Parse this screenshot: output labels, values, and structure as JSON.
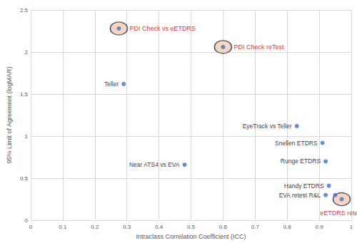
{
  "chart_data": {
    "type": "scatter",
    "xlabel": "Intraclass Correlation Coefficient (ICC)",
    "ylabel": "95% Limit of Agreement (logMAR)",
    "xlim": [
      0,
      1
    ],
    "xticks": [
      0,
      0.1,
      0.2,
      0.3,
      0.4,
      0.5,
      0.6,
      0.7,
      0.8,
      0.9,
      1
    ],
    "ylim": [
      0,
      2.5
    ],
    "yticks": [
      0,
      0.5,
      1,
      1.5,
      2,
      2.5
    ],
    "grid": true,
    "series": [
      {
        "color": "#4472c4",
        "marker": "circle",
        "x": [
          0.29,
          0.48,
          0.83,
          0.91,
          0.92,
          0.93,
          0.92,
          0.95
        ],
        "values": [
          1.62,
          0.66,
          1.12,
          0.92,
          0.7,
          0.41,
          0.3,
          0.3
        ],
        "labels": [
          "Teller",
          "Near ATS4 vs EVA",
          "EyeTrack vs Teller",
          "Snellen ETDRS",
          "Runge ETDRS",
          "Handy ETDRS",
          "EVA retest R&L",
          null
        ]
      },
      {
        "color": "#4472c4",
        "marker": "ringed",
        "x": [
          0.275,
          0.6,
          0.97
        ],
        "values": [
          2.28,
          2.06,
          0.25
        ],
        "labels": [
          "PDI Check vs eETDRS",
          "PDI Check reTest",
          "eETDRS retest"
        ]
      }
    ]
  }
}
